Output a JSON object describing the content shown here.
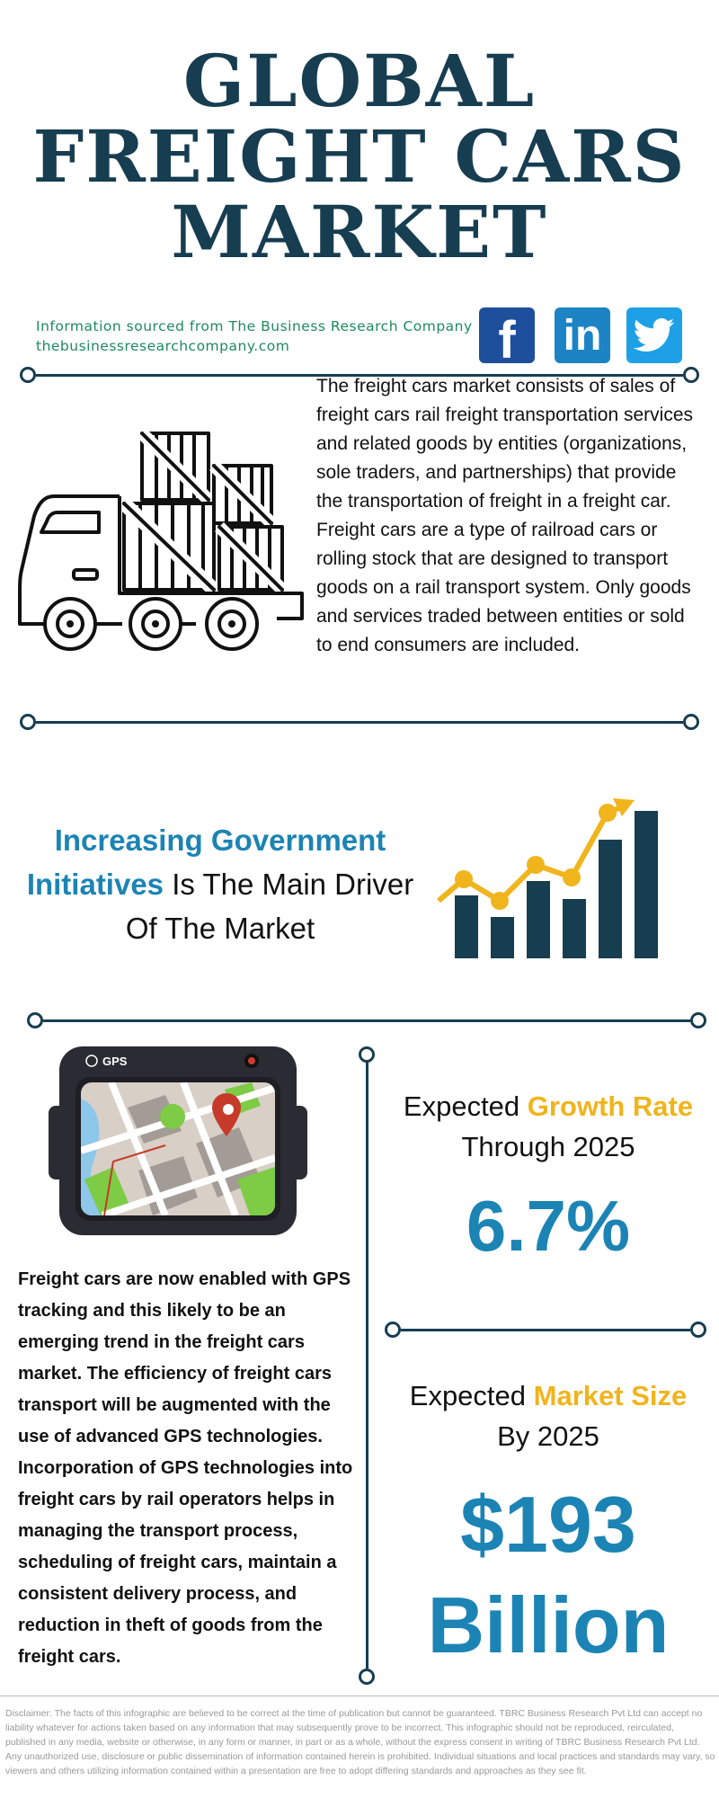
{
  "title": {
    "line1": "GLOBAL",
    "line2": "FREIGHT CARS",
    "line3": "MARKET"
  },
  "source": {
    "line1": "Information sourced from The Business Research Company",
    "line2": "thebusinessresearchcompany.com"
  },
  "social": {
    "facebook": "f",
    "linkedin": "in"
  },
  "description": "The freight cars market consists of sales of freight cars rail freight transportation services and related goods by entities (organizations, sole traders, and partnerships) that provide the transportation of freight in a freight car. Freight cars are a type of railroad cars or rolling stock that are designed to transport goods on a rail transport system. Only goods and services traded between entities or sold to end consumers are included.",
  "driver": {
    "highlight": "Increasing Government Initiatives",
    "rest": " Is The Main Driver Of The Market"
  },
  "gps": {
    "badge": "GPS",
    "text": "Freight cars are now enabled with GPS tracking and this likely to be an emerging trend in the freight cars market. The efficiency of freight cars transport will be augmented with the use of advanced GPS technologies. Incorporation of GPS technologies into freight cars by rail operators helps in managing the transport process, scheduling of freight cars, maintain a consistent delivery process, and reduction in theft of goods from the freight cars."
  },
  "growth": {
    "prefix": "Expected ",
    "highlight": "Growth Rate",
    "line2": "Through 2025",
    "value": "6.7%"
  },
  "market_size": {
    "prefix": "Expected ",
    "highlight": "Market Size",
    "line2": "By 2025",
    "value_line1": "$193",
    "value_line2": "Billion"
  },
  "disclaimer": "Disclaimer: The facts of this infographic are believed to be correct at the time of publication but cannot be guaranteed. TBRC Business Research Pvt Ltd can accept no liability whatever for actions taken based on any information that may subsequently prove to be incorrect. This infographic should not be reproduced, reirculated, published in any media, website or otherwise, in any form or manner, in part or as a whole, without the express consent in writing of TBRC Business Research Pvt Ltd. Any unauthorized use, disclosure or public dissemination of information contained herein is prohibited. Individual situations and local practices and standards may vary, so viewers and others utilizing information contained within a presentation are free to adopt differing standards and approaches as they see fit.",
  "icons": {
    "truck": "freight-truck-icon",
    "chart": "growth-chart-icon",
    "gps": "gps-device-icon",
    "twitter": "twitter-bird-icon"
  },
  "colors": {
    "navy": "#173d51",
    "blue": "#1c84b4",
    "yellow": "#f0b41c",
    "green": "#1e8a5e"
  }
}
